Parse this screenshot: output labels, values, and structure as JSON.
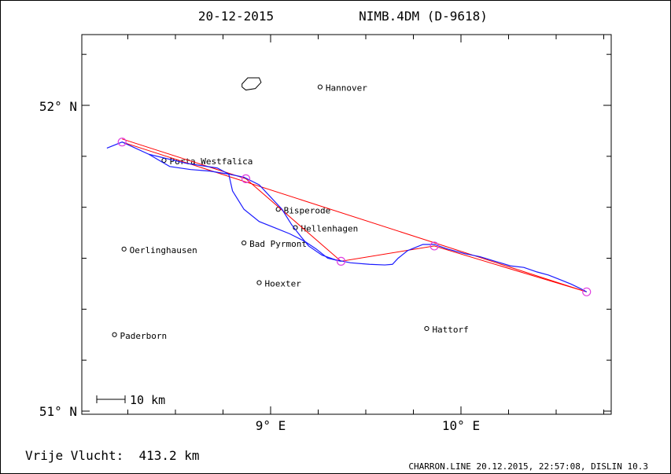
{
  "chart_data": {
    "type": "line",
    "title_date": "20-12-2015",
    "title_glider": "NIMB.4DM (D-9618)",
    "x_ticks": [
      "9° E",
      "10° E"
    ],
    "y_ticks": [
      "52° N",
      "51° N"
    ],
    "xlim": [
      8.0,
      10.8
    ],
    "ylim": [
      51.0,
      52.2
    ],
    "scale_label": "10 km",
    "footer_left": "Vrije Vlucht:  413.2 km",
    "footer_right": "CHARRON.LINE 20.12.2015, 22:57:08, DISLIN 10.3",
    "colors": {
      "track": "#1a1aff",
      "task": "#ff0000",
      "turnpoint": "#e040e0",
      "frame": "#000000"
    },
    "places": [
      {
        "name": "Hannover",
        "lon": 9.26,
        "lat": 52.06
      },
      {
        "name": "Porta Westfalica",
        "lon": 8.44,
        "lat": 51.82
      },
      {
        "name": "Bisperode",
        "lon": 9.04,
        "lat": 51.66
      },
      {
        "name": "Hellenhagen",
        "lon": 9.13,
        "lat": 51.6
      },
      {
        "name": "Bad Pyrmont",
        "lon": 8.86,
        "lat": 51.55
      },
      {
        "name": "Oerlinghausen",
        "lon": 8.23,
        "lat": 51.53
      },
      {
        "name": "Hoexter",
        "lon": 8.94,
        "lat": 51.42
      },
      {
        "name": "Paderborn",
        "lon": 8.18,
        "lat": 51.25
      },
      {
        "name": "Hattorf",
        "lon": 9.82,
        "lat": 51.27
      }
    ],
    "task_lines": [
      [
        [
          8.22,
          51.88
        ],
        [
          10.66,
          51.39
        ]
      ],
      [
        [
          8.22,
          51.89
        ],
        [
          8.87,
          51.76
        ],
        [
          9.37,
          51.49
        ],
        [
          9.86,
          51.54
        ],
        [
          10.66,
          51.39
        ]
      ]
    ],
    "turnpoints": [
      {
        "lon": 8.22,
        "lat": 51.88
      },
      {
        "lon": 8.87,
        "lat": 51.76
      },
      {
        "lon": 9.37,
        "lat": 51.49
      },
      {
        "lon": 9.86,
        "lat": 51.54
      },
      {
        "lon": 10.66,
        "lat": 51.39
      }
    ],
    "track": [
      [
        8.14,
        51.86
      ],
      [
        8.22,
        51.88
      ],
      [
        8.36,
        51.84
      ],
      [
        8.47,
        51.8
      ],
      [
        8.58,
        51.79
      ],
      [
        8.68,
        51.785
      ],
      [
        8.78,
        51.775
      ],
      [
        8.86,
        51.765
      ],
      [
        8.94,
        51.74
      ],
      [
        9.0,
        51.7
      ],
      [
        9.06,
        51.66
      ],
      [
        9.11,
        51.61
      ],
      [
        9.16,
        51.57
      ],
      [
        9.2,
        51.54
      ],
      [
        9.27,
        51.51
      ],
      [
        9.34,
        51.495
      ],
      [
        9.42,
        51.485
      ],
      [
        9.52,
        51.48
      ],
      [
        9.6,
        51.478
      ],
      [
        9.64,
        51.48
      ],
      [
        9.67,
        51.5
      ],
      [
        9.72,
        51.525
      ],
      [
        9.8,
        51.545
      ],
      [
        9.86,
        51.545
      ],
      [
        9.93,
        51.53
      ],
      [
        10.02,
        51.515
      ],
      [
        10.1,
        51.505
      ],
      [
        10.18,
        51.49
      ],
      [
        10.26,
        51.475
      ],
      [
        10.33,
        51.47
      ],
      [
        10.4,
        51.455
      ],
      [
        10.46,
        51.445
      ],
      [
        10.52,
        51.43
      ],
      [
        10.58,
        51.415
      ],
      [
        10.63,
        51.4
      ],
      [
        10.66,
        51.39
      ]
    ],
    "track2": [
      [
        8.36,
        51.84
      ],
      [
        8.56,
        51.81
      ],
      [
        8.72,
        51.795
      ],
      [
        8.78,
        51.775
      ],
      [
        8.8,
        51.72
      ],
      [
        8.86,
        51.66
      ],
      [
        8.94,
        51.62
      ],
      [
        9.02,
        51.6
      ],
      [
        9.1,
        51.58
      ],
      [
        9.18,
        51.555
      ],
      [
        9.24,
        51.53
      ],
      [
        9.3,
        51.5
      ],
      [
        9.37,
        51.49
      ]
    ],
    "lake": [
      [
        8.85,
        52.07
      ],
      [
        8.88,
        52.09
      ],
      [
        8.94,
        52.09
      ],
      [
        8.95,
        52.075
      ],
      [
        8.92,
        52.055
      ],
      [
        8.87,
        52.05
      ],
      [
        8.85,
        52.06
      ]
    ]
  }
}
